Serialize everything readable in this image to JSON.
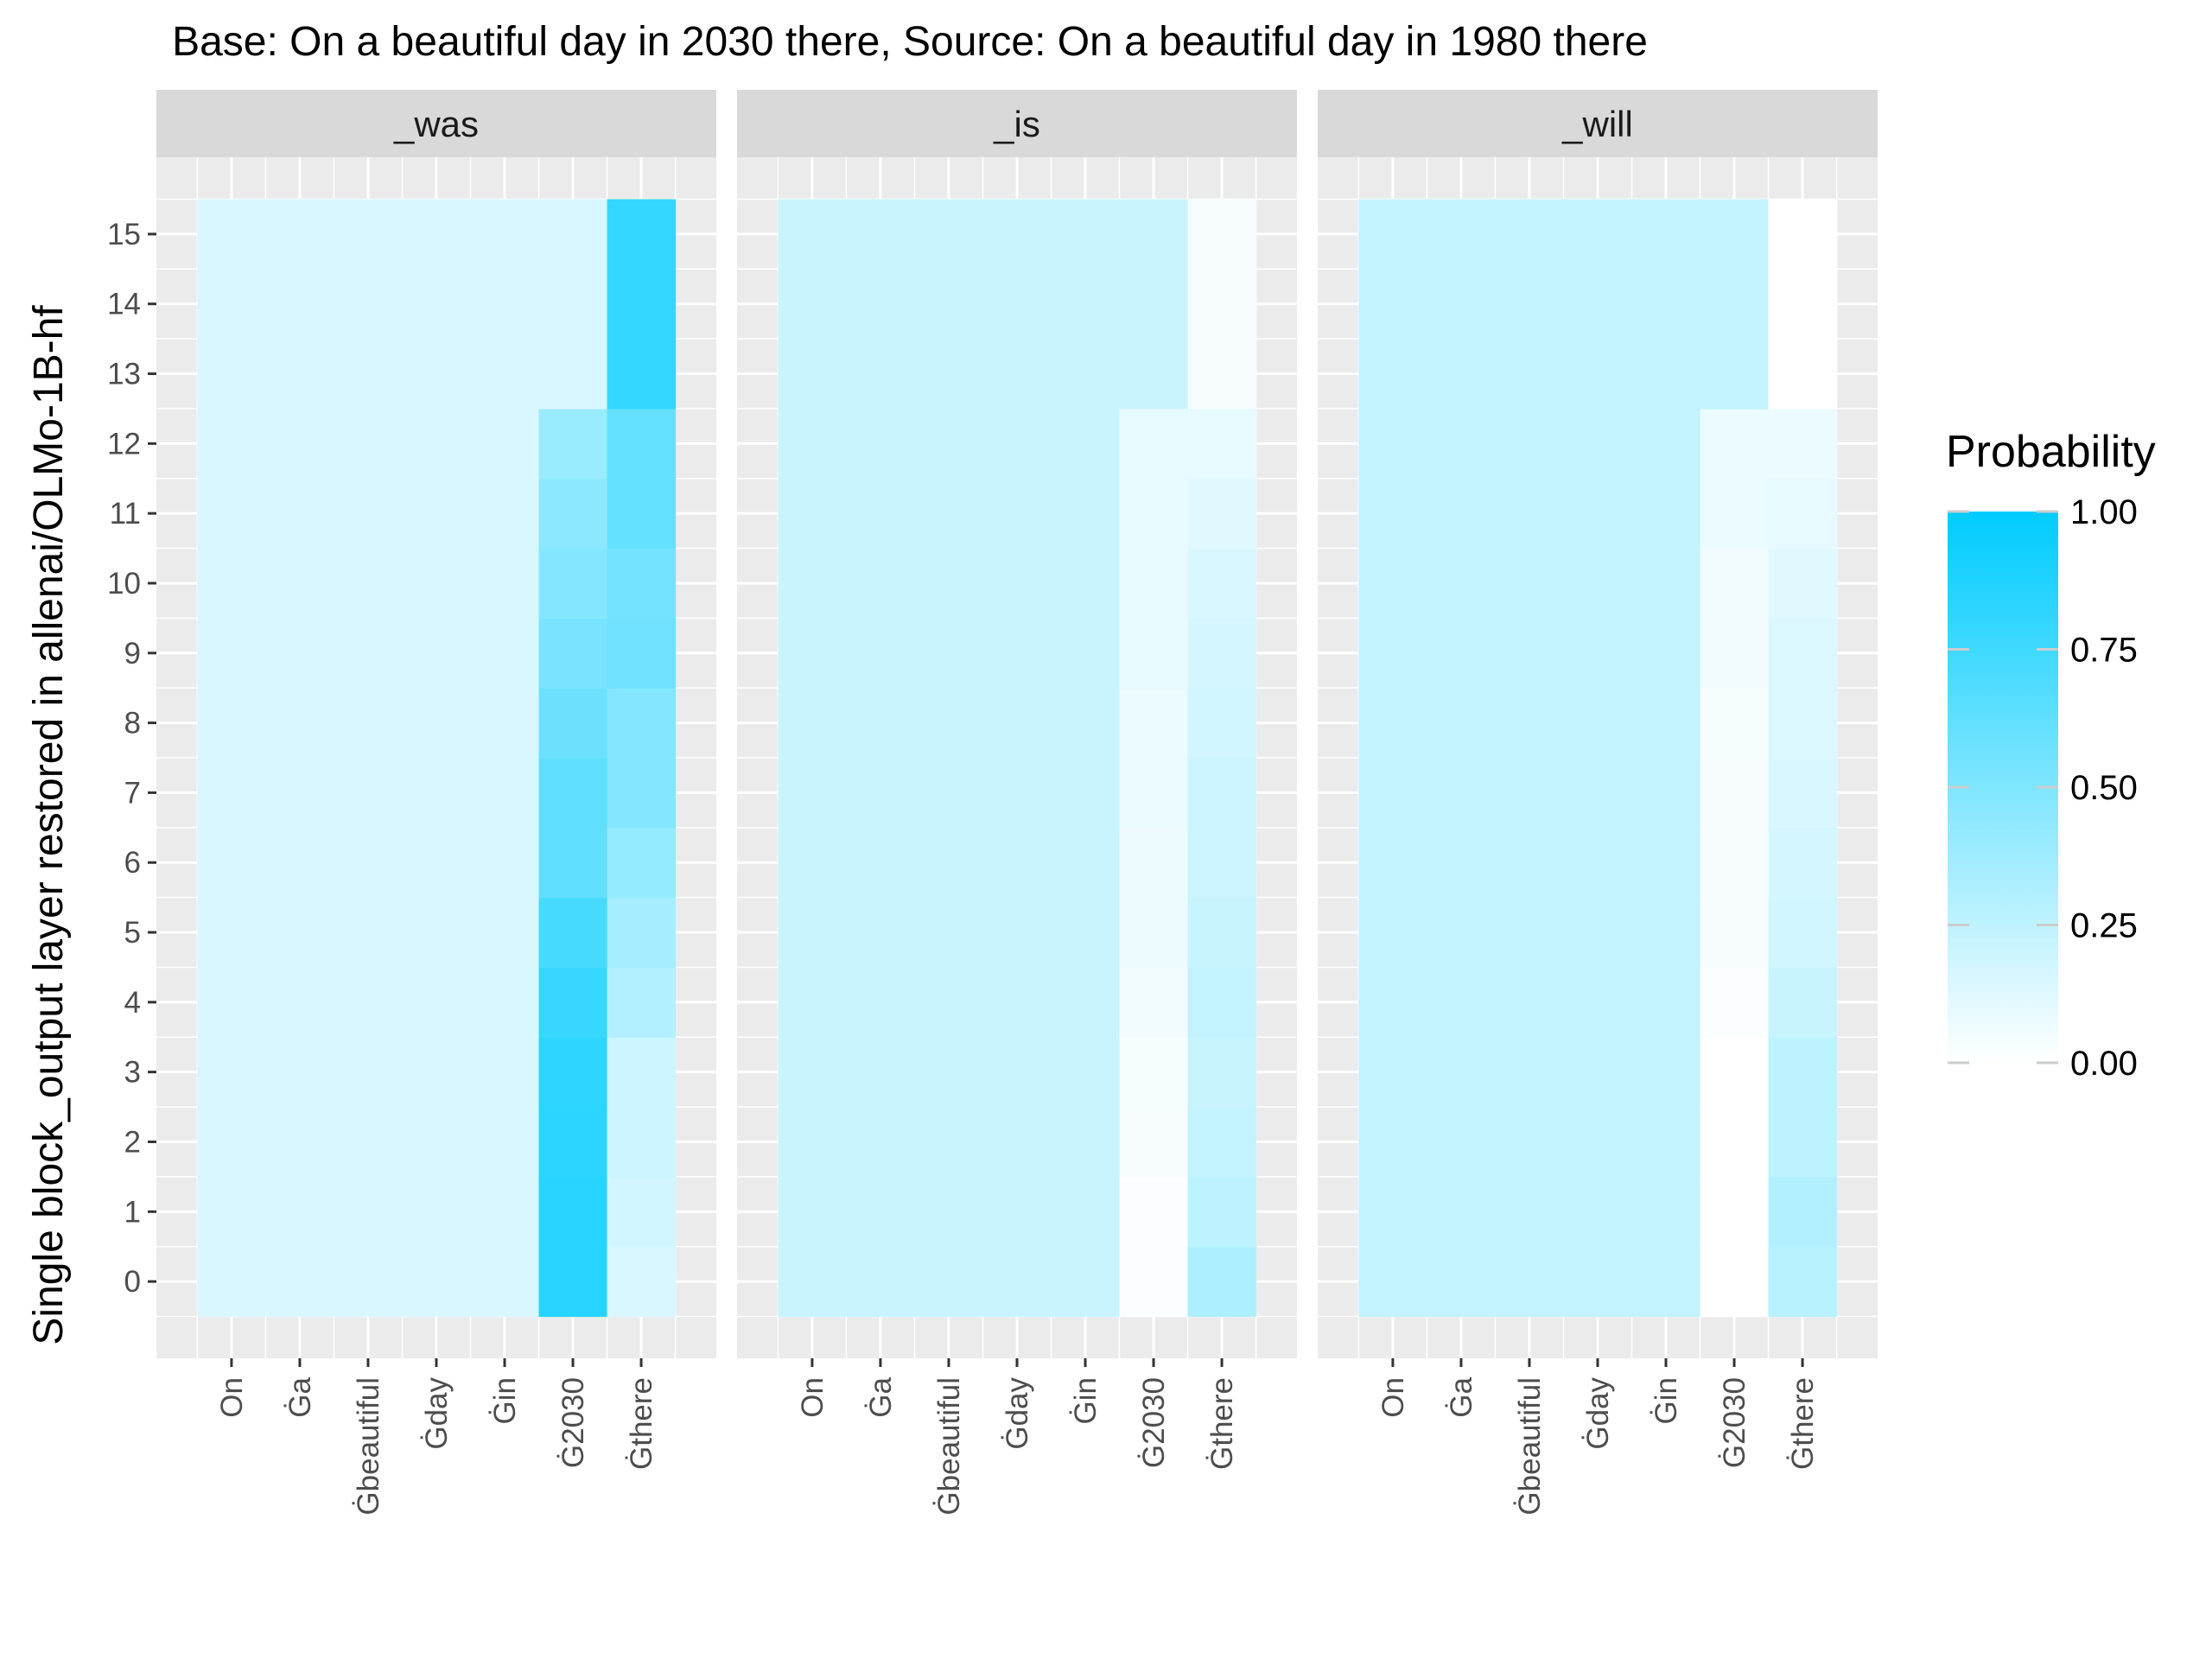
{
  "chart_data": {
    "type": "heatmap",
    "title": "Base: On a beautiful day in 2030 there, Source: On a beautiful day in 1980 there",
    "ylabel": "Single block_output layer restored in allenai/OLMo-1B-hf",
    "xlabel": "",
    "x_tokens": [
      "On",
      "Ġa",
      "Ġbeautiful",
      "Ġday",
      "Ġin",
      "Ġ2030",
      "Ġthere"
    ],
    "y_layers": [
      "0",
      "1",
      "2",
      "3",
      "4",
      "5",
      "6",
      "7",
      "8",
      "9",
      "10",
      "11",
      "12",
      "13",
      "14",
      "15"
    ],
    "facets": [
      {
        "label": "_was",
        "uniform_value": 0.15,
        "uniform_rows": [
          0,
          15
        ],
        "column_values": {
          "Ġ2030": [
            0.85,
            0.85,
            0.83,
            0.82,
            0.78,
            0.72,
            0.62,
            0.62,
            0.58,
            0.52,
            0.48,
            0.45,
            0.4,
            0.15,
            0.15,
            0.15
          ],
          "Ġthere": [
            0.15,
            0.18,
            0.2,
            0.2,
            0.3,
            0.35,
            0.42,
            0.48,
            0.48,
            0.56,
            0.55,
            0.6,
            0.6,
            0.8,
            0.8,
            0.8
          ]
        }
      },
      {
        "label": "_is",
        "uniform_value": 0.21,
        "column_values": {
          "Ġ2030": [
            0.02,
            0.02,
            0.03,
            0.04,
            0.05,
            0.07,
            0.07,
            0.08,
            0.08,
            0.09,
            0.09,
            0.1,
            0.1,
            0.21,
            0.21,
            0.21
          ],
          "Ġthere": [
            0.32,
            0.26,
            0.24,
            0.22,
            0.24,
            0.22,
            0.2,
            0.2,
            0.18,
            0.17,
            0.15,
            0.12,
            0.1,
            0.03,
            0.03,
            0.03
          ]
        }
      },
      {
        "label": "_will",
        "uniform_value": 0.24,
        "column_values": {
          "Ġ2030": [
            0.0,
            0.0,
            0.0,
            0.0,
            0.02,
            0.03,
            0.03,
            0.03,
            0.04,
            0.05,
            0.06,
            0.08,
            0.08,
            0.24,
            0.24,
            0.24
          ],
          "Ġthere": [
            0.28,
            0.3,
            0.26,
            0.26,
            0.22,
            0.18,
            0.17,
            0.15,
            0.14,
            0.14,
            0.12,
            0.1,
            0.08,
            0.0,
            0.0,
            0.0
          ]
        }
      }
    ],
    "legend": {
      "title": "Probability",
      "placement": "right",
      "breaks": [
        "0.00",
        "0.25",
        "0.50",
        "0.75",
        "1.00"
      ],
      "range": [
        0,
        1
      ],
      "low_color": "#ffffff",
      "high_color": "#00ccff"
    },
    "colors": {
      "panel_background": "#ebebeb",
      "strip_background": "#d9d9d9",
      "grid_line": "#ffffff"
    }
  }
}
